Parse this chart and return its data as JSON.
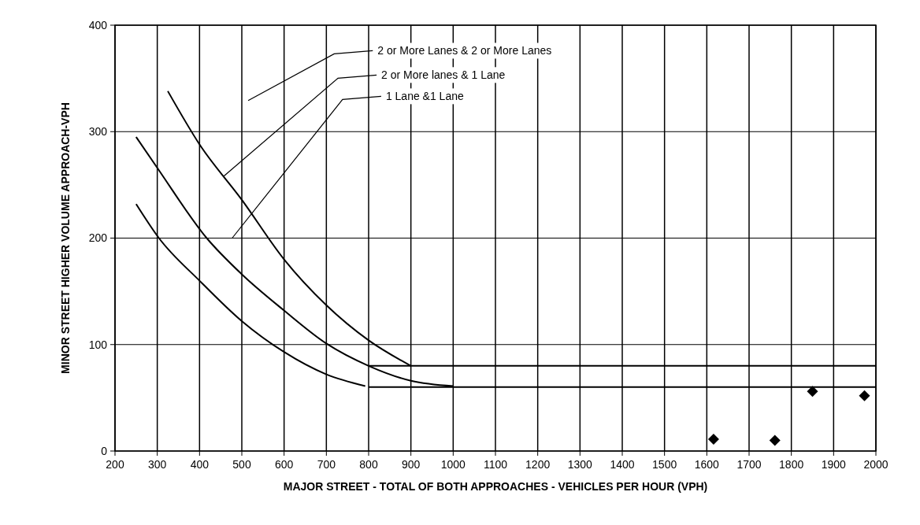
{
  "chart_data": {
    "type": "line",
    "xlabel": "MAJOR STREET - TOTAL OF BOTH APPROACHES - VEHICLES PER HOUR (VPH)",
    "ylabel": "MINOR STREET HIGHER VOLUME APPROACH-VPH",
    "xlim": [
      200,
      2000
    ],
    "xticks": [
      200,
      300,
      400,
      500,
      600,
      700,
      800,
      900,
      1000,
      1100,
      1200,
      1300,
      1400,
      1500,
      1600,
      1700,
      1800,
      1900,
      2000
    ],
    "ylim": [
      0,
      400
    ],
    "yticks": [
      0,
      100,
      200,
      300,
      400
    ],
    "grid": true,
    "marker": "none",
    "line_style": "solid",
    "series": [
      {
        "color": "#000000",
        "x": [
          325,
          400,
          500,
          600,
          700,
          800,
          900
        ],
        "values": [
          338,
          288,
          236,
          180,
          137,
          104,
          80
        ]
      },
      {
        "color": "#000000",
        "x": [
          250,
          300,
          417,
          500,
          600,
          700,
          800,
          900,
          1000
        ],
        "values": [
          295,
          266,
          200,
          166,
          132,
          101,
          80,
          66,
          61
        ]
      },
      {
        "color": "#000000",
        "x": [
          250,
          304,
          400,
          500,
          600,
          700,
          792
        ],
        "values": [
          232,
          200,
          160,
          122,
          93,
          72,
          61
        ]
      },
      {
        "color": "#000000",
        "x": [
          800,
          2000
        ],
        "values": [
          80,
          80
        ]
      },
      {
        "color": "#000000",
        "x": [
          800,
          1000,
          2000
        ],
        "values": [
          60,
          60,
          60
        ]
      },
      {
        "type": "scatter",
        "color": "#000000",
        "marker": "diamond",
        "x": [
          1616,
          1761,
          1850,
          1973
        ],
        "values": [
          11,
          10,
          56,
          52
        ]
      }
    ],
    "annotations": [
      "2 or More Lanes & 2 or More Lanes",
      {
        "text": "2 or More lanes & 1 Lane",
        "x": 457,
        "y": 258
      },
      "1 Lane &1 Lane"
    ]
  }
}
